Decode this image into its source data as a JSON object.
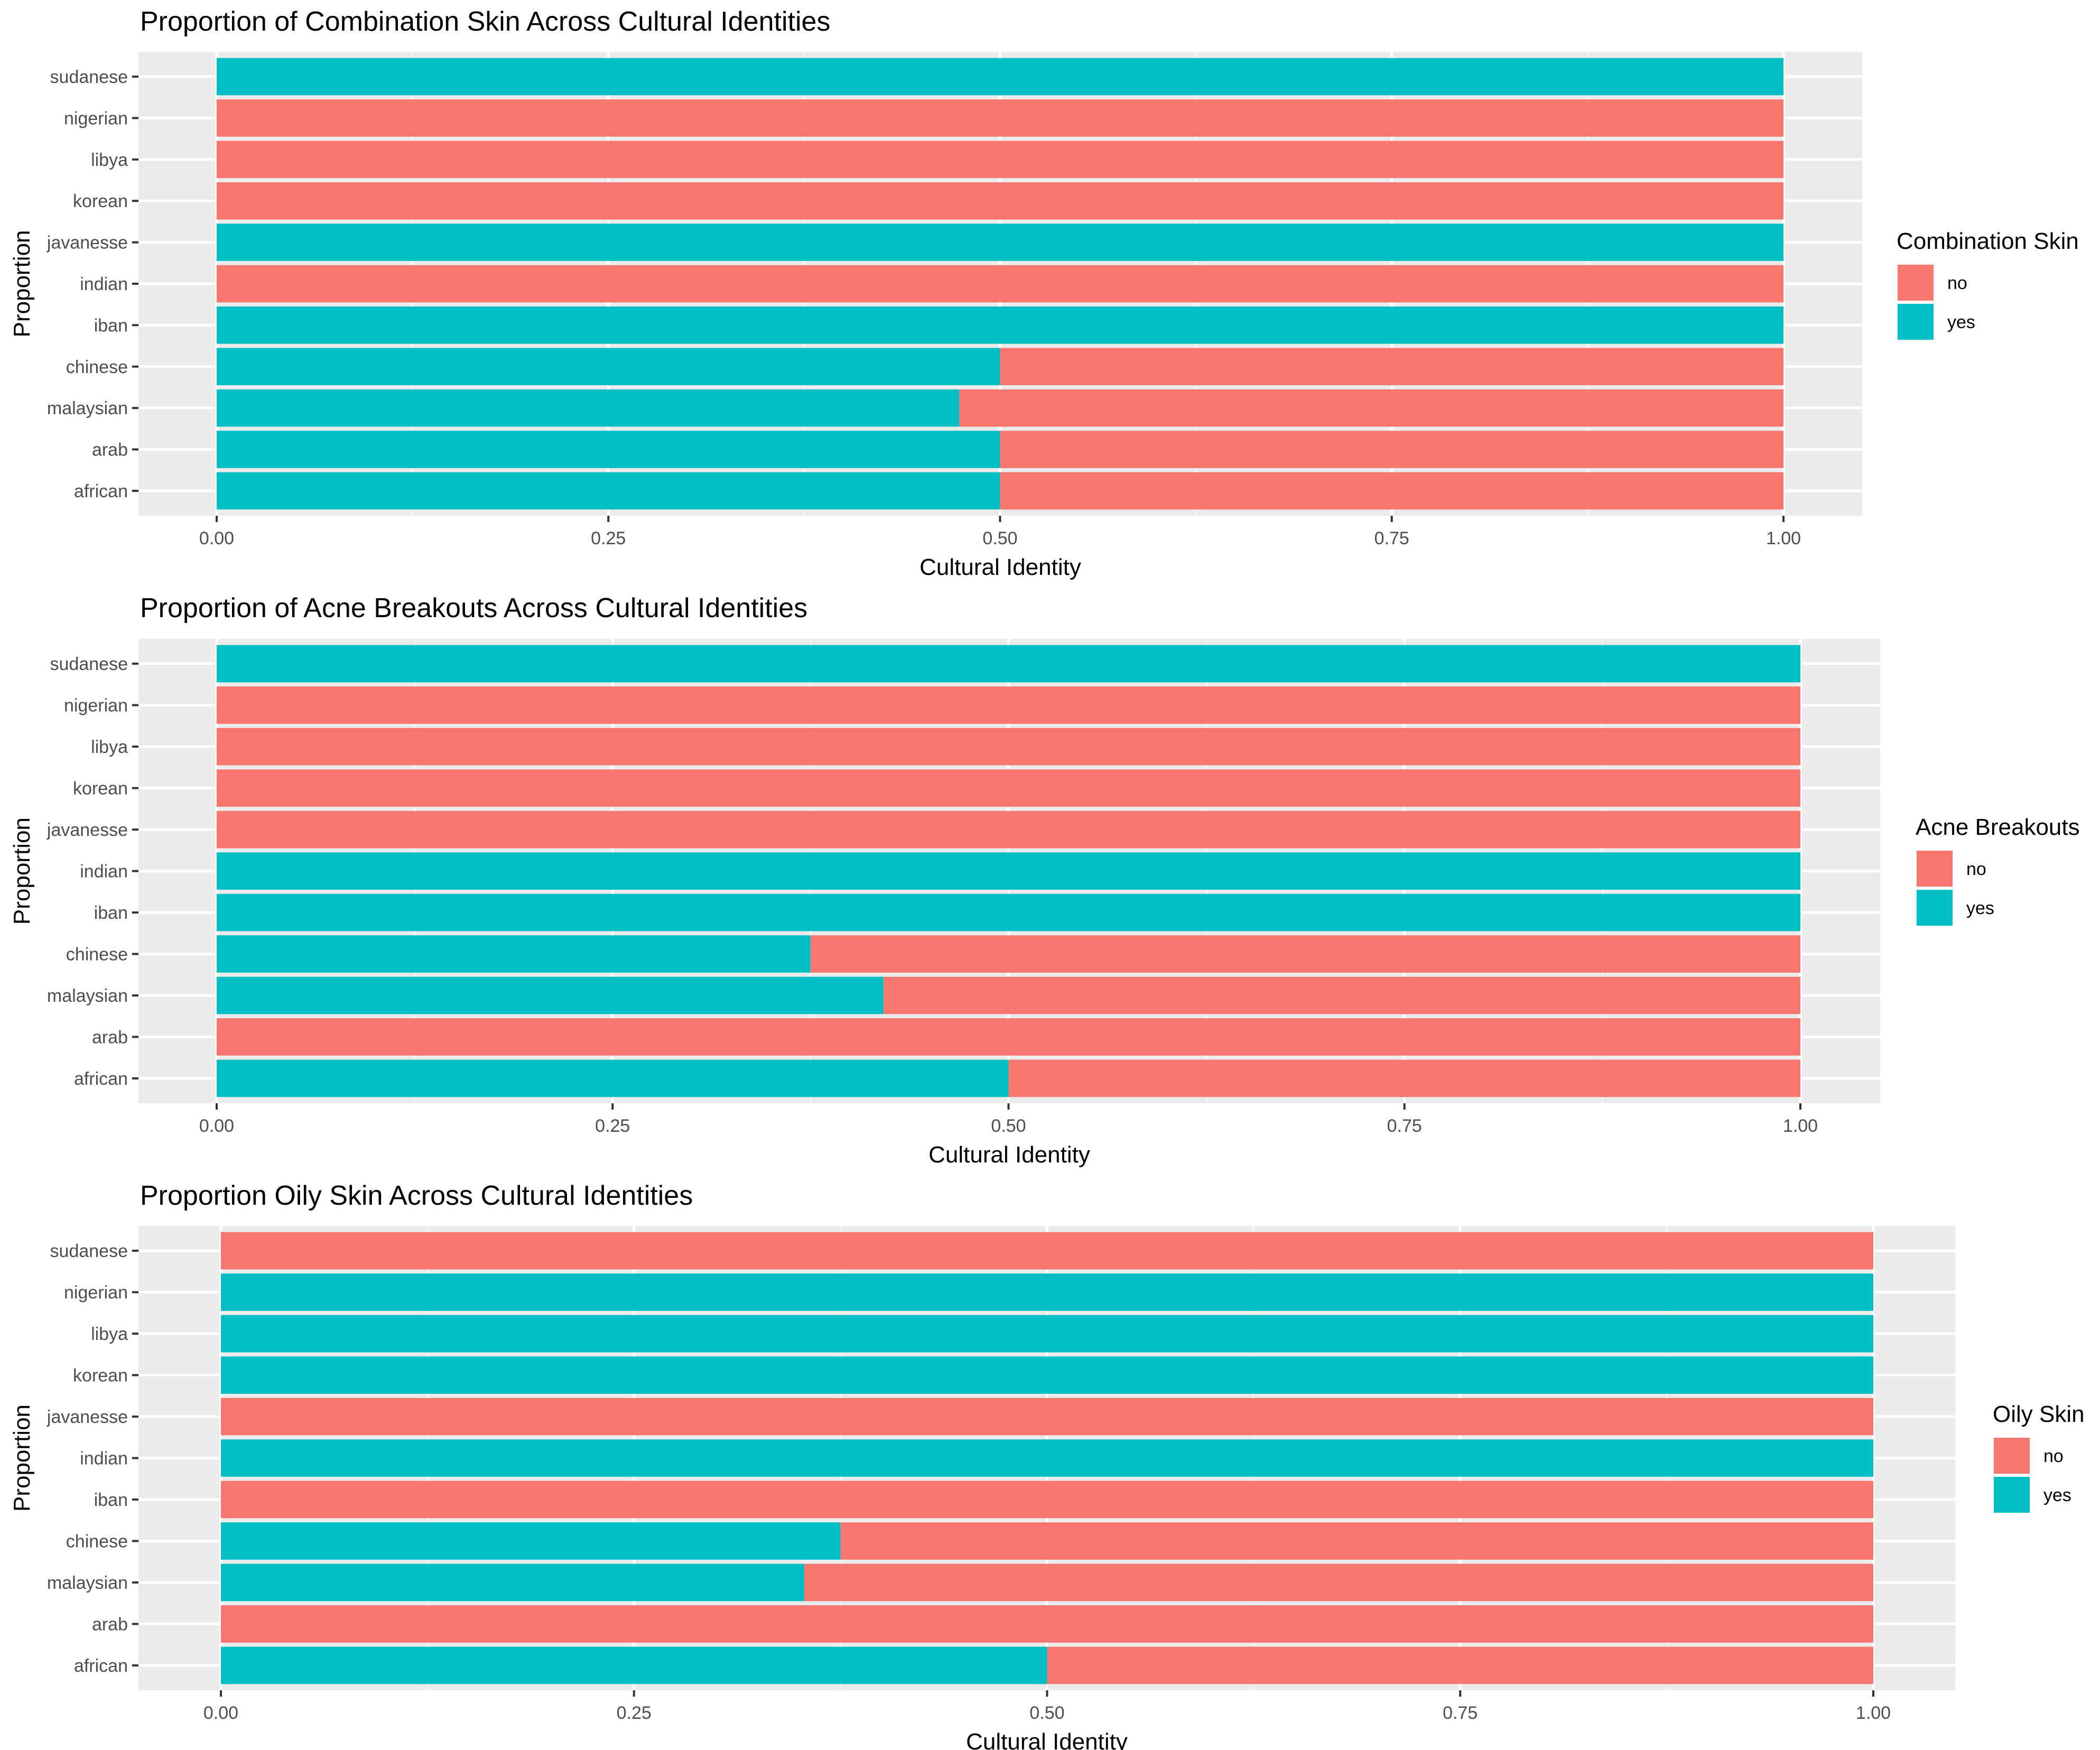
{
  "colors": {
    "no": "#F8766D",
    "yes": "#00BFC4",
    "panel_bg": "#EBEBEB",
    "grid_major": "#FFFFFF",
    "tick_text": "#4D4D4D",
    "title_text": "#000000"
  },
  "chart_data": [
    {
      "type": "bar",
      "orientation": "horizontal",
      "stacked": "fill",
      "title": "Proportion of Combination Skin Across Cultural Identities",
      "xlabel": "Cultural Identity",
      "ylabel": "Proportion",
      "xlim": [
        0,
        1
      ],
      "xticks": [
        "0.00",
        "0.25",
        "0.50",
        "0.75",
        "1.00"
      ],
      "legend_title": "Combination Skin",
      "legend_position": "right",
      "categories": [
        "african",
        "arab",
        "malaysian",
        "chinese",
        "iban",
        "indian",
        "javanesse",
        "korean",
        "libya",
        "nigerian",
        "sudanese"
      ],
      "series": [
        {
          "name": "yes",
          "values": [
            0.5,
            0.5,
            0.474,
            0.5,
            1,
            0,
            1,
            0,
            0,
            0,
            1
          ]
        },
        {
          "name": "no",
          "values": [
            0.5,
            0.5,
            0.526,
            0.5,
            0,
            1,
            0,
            1,
            1,
            1,
            0
          ]
        }
      ],
      "grid": true
    },
    {
      "type": "bar",
      "orientation": "horizontal",
      "stacked": "fill",
      "title": "Proportion of Acne Breakouts Across Cultural Identities",
      "xlabel": "Cultural Identity",
      "ylabel": "Proportion",
      "xlim": [
        0,
        1
      ],
      "xticks": [
        "0.00",
        "0.25",
        "0.50",
        "0.75",
        "1.00"
      ],
      "legend_title": "Acne Breakouts",
      "legend_position": "right",
      "categories": [
        "african",
        "arab",
        "malaysian",
        "chinese",
        "iban",
        "indian",
        "javanesse",
        "korean",
        "libya",
        "nigerian",
        "sudanese"
      ],
      "series": [
        {
          "name": "yes",
          "values": [
            0.5,
            0,
            0.421,
            0.375,
            1,
            1,
            0,
            0,
            0,
            0,
            1
          ]
        },
        {
          "name": "no",
          "values": [
            0.5,
            1,
            0.579,
            0.625,
            0,
            0,
            1,
            1,
            1,
            1,
            0
          ]
        }
      ],
      "grid": true
    },
    {
      "type": "bar",
      "orientation": "horizontal",
      "stacked": "fill",
      "title": "Proportion Oily Skin Across Cultural Identities",
      "xlabel": "Cultural Identity",
      "ylabel": "Proportion",
      "xlim": [
        0,
        1
      ],
      "xticks": [
        "0.00",
        "0.25",
        "0.50",
        "0.75",
        "1.00"
      ],
      "legend_title": "Oily Skin",
      "legend_position": "right",
      "categories": [
        "african",
        "arab",
        "malaysian",
        "chinese",
        "iban",
        "indian",
        "javanesse",
        "korean",
        "libya",
        "nigerian",
        "sudanese"
      ],
      "series": [
        {
          "name": "yes",
          "values": [
            0.5,
            0,
            0.353,
            0.375,
            0,
            1,
            0,
            1,
            1,
            1,
            0
          ]
        },
        {
          "name": "no",
          "values": [
            0.5,
            1,
            0.647,
            0.625,
            1,
            0,
            1,
            0,
            0,
            0,
            1
          ]
        }
      ],
      "grid": true
    }
  ]
}
